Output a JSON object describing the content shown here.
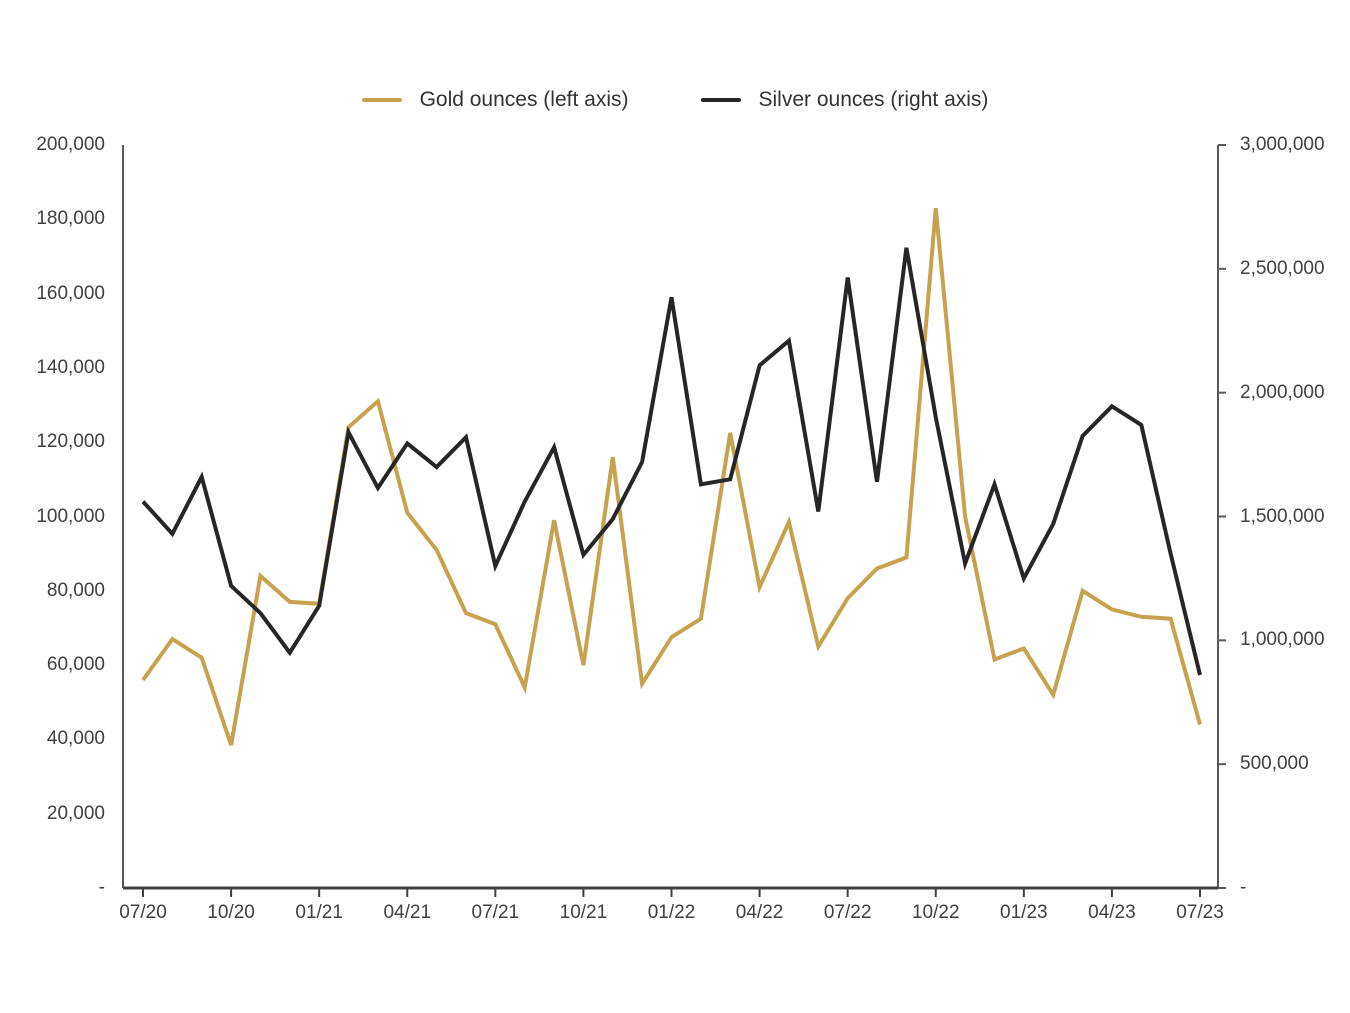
{
  "legend": {
    "gold_label": "Gold ounces (left axis)",
    "silver_label": "Silver ounces (right axis)"
  },
  "colors": {
    "gold": "#C6A24E",
    "silver": "#262626",
    "axis_line": "#595959",
    "tick_text": "#404040"
  },
  "chart_data": {
    "type": "line",
    "title": "",
    "months": [
      "07/20",
      "08/20",
      "09/20",
      "10/20",
      "11/20",
      "12/20",
      "01/21",
      "02/21",
      "03/21",
      "04/21",
      "05/21",
      "06/21",
      "07/21",
      "08/21",
      "09/21",
      "10/21",
      "11/21",
      "12/21",
      "01/22",
      "02/22",
      "03/22",
      "04/22",
      "05/22",
      "06/22",
      "07/22",
      "08/22",
      "09/22",
      "10/22",
      "11/22",
      "12/22",
      "01/23",
      "02/23",
      "03/23",
      "04/23",
      "05/23",
      "06/23",
      "07/23"
    ],
    "x_tick_labels": [
      "07/20",
      "10/20",
      "01/21",
      "04/21",
      "07/21",
      "10/21",
      "01/22",
      "04/22",
      "07/22",
      "10/22",
      "01/23",
      "04/23",
      "07/23"
    ],
    "x_tick_every": 3,
    "series": [
      {
        "name": "Gold ounces (left axis)",
        "axis": "left",
        "color": "#C6A24E",
        "values": [
          56000,
          67000,
          62000,
          38500,
          84000,
          77000,
          76500,
          124000,
          131000,
          101000,
          91000,
          74000,
          71000,
          54000,
          99000,
          60000,
          116000,
          55000,
          67500,
          72500,
          122500,
          81000,
          98500,
          65000,
          78000,
          86000,
          89000,
          183000,
          100000,
          61500,
          64500,
          52000,
          80000,
          75000,
          73000,
          72500,
          44000
        ]
      },
      {
        "name": "Silver ounces (right axis)",
        "axis": "right",
        "color": "#262626",
        "values": [
          1560000,
          1430000,
          1660000,
          1220000,
          1110000,
          950000,
          1140000,
          1840000,
          1615000,
          1795000,
          1700000,
          1820000,
          1300000,
          1560000,
          1780000,
          1345000,
          1490000,
          1720000,
          2385000,
          1630000,
          1650000,
          2110000,
          2210000,
          1520000,
          2465000,
          1640000,
          2585000,
          1900000,
          1310000,
          1630000,
          1250000,
          1470000,
          1825000,
          1945000,
          1870000,
          1350000,
          860000
        ]
      }
    ],
    "left_axis": {
      "min": 0,
      "max": 200000,
      "tick_step": 20000,
      "tick_labels": [
        "200,000",
        "180,000",
        "160,000",
        "140,000",
        "120,000",
        "100,000",
        "80,000",
        "60,000",
        "40,000",
        "20,000",
        "-"
      ]
    },
    "right_axis": {
      "min": 0,
      "max": 3000000,
      "tick_step": 500000,
      "tick_labels": [
        "3,000,000",
        "2,500,000",
        "2,000,000",
        "1,500,000",
        "1,000,000",
        "500,000",
        "-"
      ]
    },
    "grid": false,
    "legend_position": "top"
  }
}
